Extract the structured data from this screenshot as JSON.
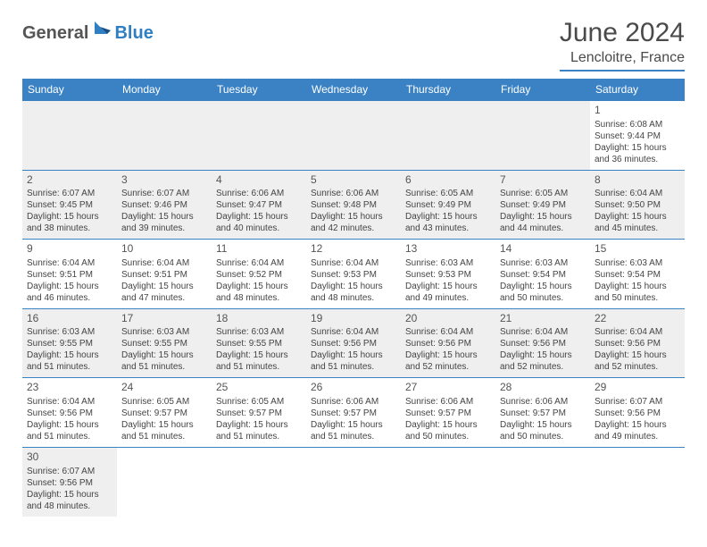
{
  "brand": {
    "general": "General",
    "blue": "Blue"
  },
  "title": "June 2024",
  "location": "Lencloitre, France",
  "colors": {
    "header_bg": "#3b82c4",
    "header_text": "#ffffff",
    "rule": "#3b82c4",
    "shade": "#efefef",
    "body_text": "#444444",
    "title_text": "#4a4a4a"
  },
  "columns": [
    "Sunday",
    "Monday",
    "Tuesday",
    "Wednesday",
    "Thursday",
    "Friday",
    "Saturday"
  ],
  "weeks": [
    [
      null,
      null,
      null,
      null,
      null,
      null,
      {
        "n": "1",
        "sr": "Sunrise: 6:08 AM",
        "ss": "Sunset: 9:44 PM",
        "d1": "Daylight: 15 hours",
        "d2": "and 36 minutes."
      }
    ],
    [
      {
        "n": "2",
        "sr": "Sunrise: 6:07 AM",
        "ss": "Sunset: 9:45 PM",
        "d1": "Daylight: 15 hours",
        "d2": "and 38 minutes."
      },
      {
        "n": "3",
        "sr": "Sunrise: 6:07 AM",
        "ss": "Sunset: 9:46 PM",
        "d1": "Daylight: 15 hours",
        "d2": "and 39 minutes."
      },
      {
        "n": "4",
        "sr": "Sunrise: 6:06 AM",
        "ss": "Sunset: 9:47 PM",
        "d1": "Daylight: 15 hours",
        "d2": "and 40 minutes."
      },
      {
        "n": "5",
        "sr": "Sunrise: 6:06 AM",
        "ss": "Sunset: 9:48 PM",
        "d1": "Daylight: 15 hours",
        "d2": "and 42 minutes."
      },
      {
        "n": "6",
        "sr": "Sunrise: 6:05 AM",
        "ss": "Sunset: 9:49 PM",
        "d1": "Daylight: 15 hours",
        "d2": "and 43 minutes."
      },
      {
        "n": "7",
        "sr": "Sunrise: 6:05 AM",
        "ss": "Sunset: 9:49 PM",
        "d1": "Daylight: 15 hours",
        "d2": "and 44 minutes."
      },
      {
        "n": "8",
        "sr": "Sunrise: 6:04 AM",
        "ss": "Sunset: 9:50 PM",
        "d1": "Daylight: 15 hours",
        "d2": "and 45 minutes."
      }
    ],
    [
      {
        "n": "9",
        "sr": "Sunrise: 6:04 AM",
        "ss": "Sunset: 9:51 PM",
        "d1": "Daylight: 15 hours",
        "d2": "and 46 minutes."
      },
      {
        "n": "10",
        "sr": "Sunrise: 6:04 AM",
        "ss": "Sunset: 9:51 PM",
        "d1": "Daylight: 15 hours",
        "d2": "and 47 minutes."
      },
      {
        "n": "11",
        "sr": "Sunrise: 6:04 AM",
        "ss": "Sunset: 9:52 PM",
        "d1": "Daylight: 15 hours",
        "d2": "and 48 minutes."
      },
      {
        "n": "12",
        "sr": "Sunrise: 6:04 AM",
        "ss": "Sunset: 9:53 PM",
        "d1": "Daylight: 15 hours",
        "d2": "and 48 minutes."
      },
      {
        "n": "13",
        "sr": "Sunrise: 6:03 AM",
        "ss": "Sunset: 9:53 PM",
        "d1": "Daylight: 15 hours",
        "d2": "and 49 minutes."
      },
      {
        "n": "14",
        "sr": "Sunrise: 6:03 AM",
        "ss": "Sunset: 9:54 PM",
        "d1": "Daylight: 15 hours",
        "d2": "and 50 minutes."
      },
      {
        "n": "15",
        "sr": "Sunrise: 6:03 AM",
        "ss": "Sunset: 9:54 PM",
        "d1": "Daylight: 15 hours",
        "d2": "and 50 minutes."
      }
    ],
    [
      {
        "n": "16",
        "sr": "Sunrise: 6:03 AM",
        "ss": "Sunset: 9:55 PM",
        "d1": "Daylight: 15 hours",
        "d2": "and 51 minutes."
      },
      {
        "n": "17",
        "sr": "Sunrise: 6:03 AM",
        "ss": "Sunset: 9:55 PM",
        "d1": "Daylight: 15 hours",
        "d2": "and 51 minutes."
      },
      {
        "n": "18",
        "sr": "Sunrise: 6:03 AM",
        "ss": "Sunset: 9:55 PM",
        "d1": "Daylight: 15 hours",
        "d2": "and 51 minutes."
      },
      {
        "n": "19",
        "sr": "Sunrise: 6:04 AM",
        "ss": "Sunset: 9:56 PM",
        "d1": "Daylight: 15 hours",
        "d2": "and 51 minutes."
      },
      {
        "n": "20",
        "sr": "Sunrise: 6:04 AM",
        "ss": "Sunset: 9:56 PM",
        "d1": "Daylight: 15 hours",
        "d2": "and 52 minutes."
      },
      {
        "n": "21",
        "sr": "Sunrise: 6:04 AM",
        "ss": "Sunset: 9:56 PM",
        "d1": "Daylight: 15 hours",
        "d2": "and 52 minutes."
      },
      {
        "n": "22",
        "sr": "Sunrise: 6:04 AM",
        "ss": "Sunset: 9:56 PM",
        "d1": "Daylight: 15 hours",
        "d2": "and 52 minutes."
      }
    ],
    [
      {
        "n": "23",
        "sr": "Sunrise: 6:04 AM",
        "ss": "Sunset: 9:56 PM",
        "d1": "Daylight: 15 hours",
        "d2": "and 51 minutes."
      },
      {
        "n": "24",
        "sr": "Sunrise: 6:05 AM",
        "ss": "Sunset: 9:57 PM",
        "d1": "Daylight: 15 hours",
        "d2": "and 51 minutes."
      },
      {
        "n": "25",
        "sr": "Sunrise: 6:05 AM",
        "ss": "Sunset: 9:57 PM",
        "d1": "Daylight: 15 hours",
        "d2": "and 51 minutes."
      },
      {
        "n": "26",
        "sr": "Sunrise: 6:06 AM",
        "ss": "Sunset: 9:57 PM",
        "d1": "Daylight: 15 hours",
        "d2": "and 51 minutes."
      },
      {
        "n": "27",
        "sr": "Sunrise: 6:06 AM",
        "ss": "Sunset: 9:57 PM",
        "d1": "Daylight: 15 hours",
        "d2": "and 50 minutes."
      },
      {
        "n": "28",
        "sr": "Sunrise: 6:06 AM",
        "ss": "Sunset: 9:57 PM",
        "d1": "Daylight: 15 hours",
        "d2": "and 50 minutes."
      },
      {
        "n": "29",
        "sr": "Sunrise: 6:07 AM",
        "ss": "Sunset: 9:56 PM",
        "d1": "Daylight: 15 hours",
        "d2": "and 49 minutes."
      }
    ],
    [
      {
        "n": "30",
        "sr": "Sunrise: 6:07 AM",
        "ss": "Sunset: 9:56 PM",
        "d1": "Daylight: 15 hours",
        "d2": "and 48 minutes."
      },
      null,
      null,
      null,
      null,
      null,
      null
    ]
  ]
}
